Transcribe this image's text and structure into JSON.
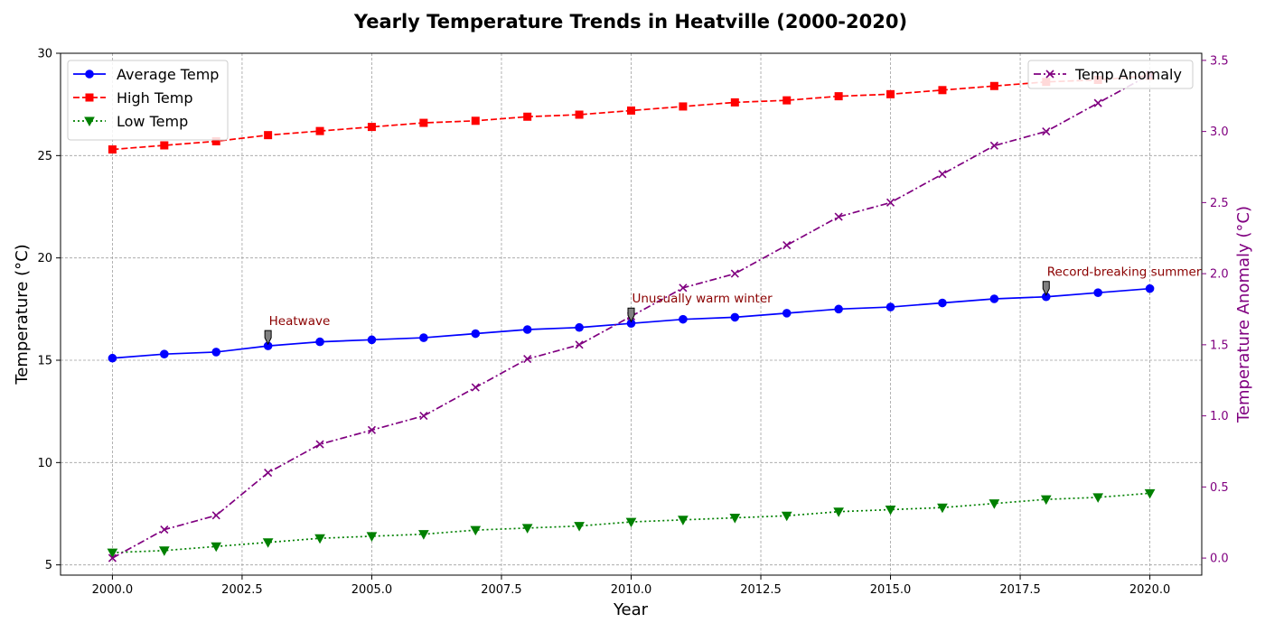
{
  "chart_data": {
    "type": "line",
    "title": "Yearly Temperature Trends in Heatville (2000-2020)",
    "xlabel": "Year",
    "ylabel": "Temperature (°C)",
    "y2label": "Temperature Anomaly (°C)",
    "xlim": [
      1999,
      2021
    ],
    "ylim": [
      4.5,
      30
    ],
    "y2lim": [
      -0.12,
      3.55
    ],
    "grid": true,
    "x_ticks": [
      2000.0,
      2002.5,
      2005.0,
      2007.5,
      2010.0,
      2012.5,
      2015.0,
      2017.5,
      2020.0
    ],
    "x_tick_labels": [
      "2000.0",
      "2002.5",
      "2005.0",
      "2007.5",
      "2010.0",
      "2012.5",
      "2015.0",
      "2017.5",
      "2020.0"
    ],
    "y_ticks": [
      5,
      10,
      15,
      20,
      25,
      30
    ],
    "y_tick_labels": [
      "5",
      "10",
      "15",
      "20",
      "25",
      "30"
    ],
    "y2_ticks": [
      0.0,
      0.5,
      1.0,
      1.5,
      2.0,
      2.5,
      3.0,
      3.5
    ],
    "y2_tick_labels": [
      "0.0",
      "0.5",
      "1.0",
      "1.5",
      "2.0",
      "2.5",
      "3.0",
      "3.5"
    ],
    "x": [
      2000,
      2001,
      2002,
      2003,
      2004,
      2005,
      2006,
      2007,
      2008,
      2009,
      2010,
      2011,
      2012,
      2013,
      2014,
      2015,
      2016,
      2017,
      2018,
      2019,
      2020
    ],
    "series": [
      {
        "name": "Average Temp",
        "axis": "left",
        "color": "#0000ff",
        "linestyle": "solid",
        "marker": "circle",
        "values": [
          15.1,
          15.3,
          15.4,
          15.7,
          15.9,
          16.0,
          16.1,
          16.3,
          16.5,
          16.6,
          16.8,
          17.0,
          17.1,
          17.3,
          17.5,
          17.6,
          17.8,
          18.0,
          18.1,
          18.3,
          18.5
        ]
      },
      {
        "name": "High Temp",
        "axis": "left",
        "color": "#ff0000",
        "linestyle": "dashed",
        "marker": "square",
        "values": [
          25.3,
          25.5,
          25.7,
          26.0,
          26.2,
          26.4,
          26.6,
          26.7,
          26.9,
          27.0,
          27.2,
          27.4,
          27.6,
          27.7,
          27.9,
          28.0,
          28.2,
          28.4,
          28.6,
          28.7,
          28.9
        ]
      },
      {
        "name": "Low Temp",
        "axis": "left",
        "color": "#008000",
        "linestyle": "dotted",
        "marker": "triangle-down",
        "values": [
          5.6,
          5.7,
          5.9,
          6.1,
          6.3,
          6.4,
          6.5,
          6.7,
          6.8,
          6.9,
          7.1,
          7.2,
          7.3,
          7.4,
          7.6,
          7.7,
          7.8,
          8.0,
          8.2,
          8.3,
          8.5
        ]
      },
      {
        "name": "Temp Anomaly",
        "axis": "right",
        "color": "#800080",
        "linestyle": "dashdot",
        "marker": "x",
        "values": [
          0.0,
          0.2,
          0.3,
          0.6,
          0.8,
          0.9,
          1.0,
          1.2,
          1.4,
          1.5,
          1.7,
          1.9,
          2.0,
          2.2,
          2.4,
          2.5,
          2.7,
          2.9,
          3.0,
          3.2,
          3.4
        ]
      }
    ],
    "legend_left": {
      "placement": "upper-left",
      "entries": [
        "Average Temp",
        "High Temp",
        "Low Temp"
      ]
    },
    "legend_right": {
      "placement": "upper-right",
      "entries": [
        "Temp Anomaly"
      ]
    },
    "annotations": [
      {
        "text": "Heatwave",
        "x": 2003,
        "y": 15.7,
        "series": "Average Temp"
      },
      {
        "text": "Unusually warm winter",
        "x": 2010,
        "y": 16.8,
        "series": "Average Temp"
      },
      {
        "text": "Record-breaking summer",
        "x": 2018,
        "y": 18.1,
        "series": "Average Temp"
      }
    ]
  }
}
